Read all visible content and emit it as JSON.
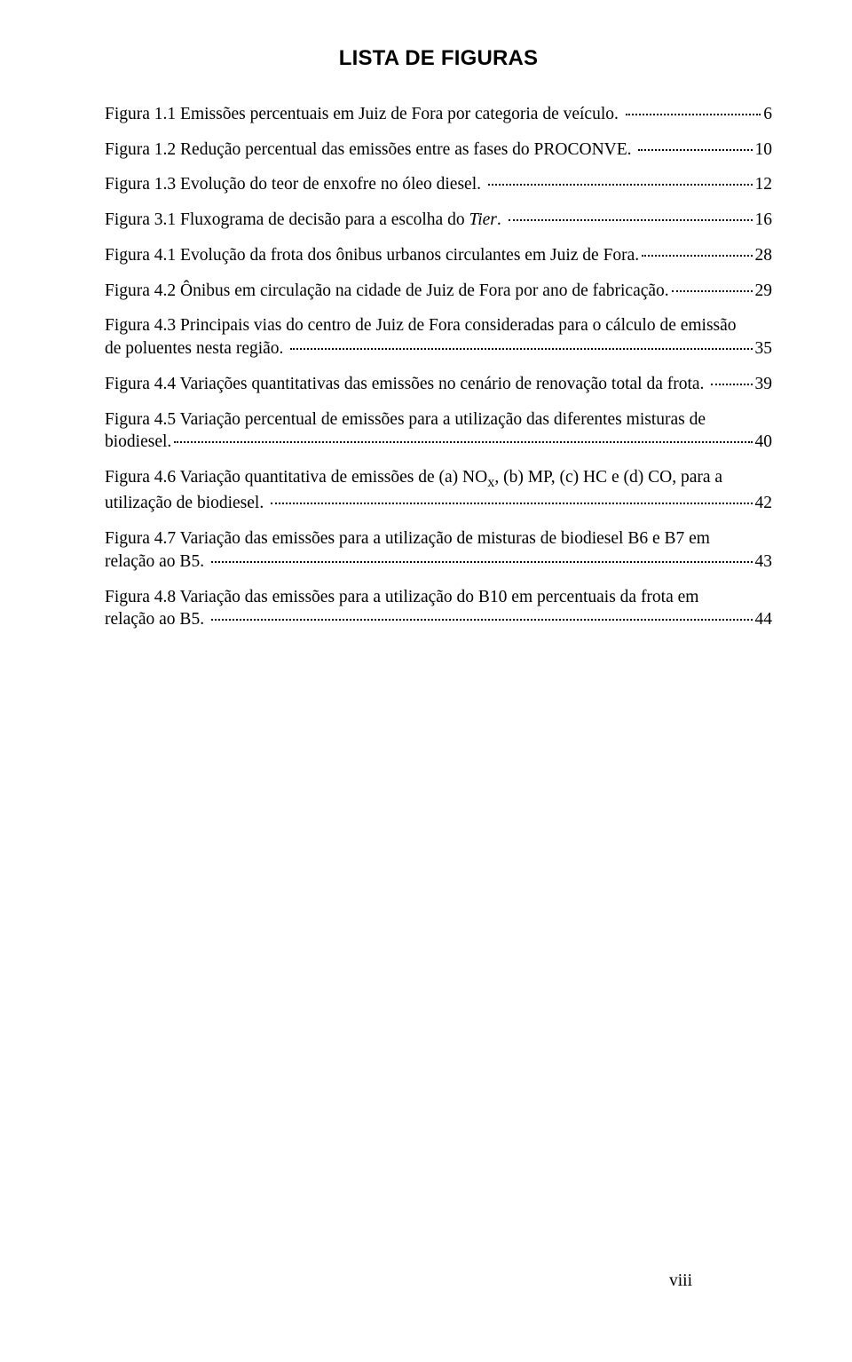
{
  "title": "LISTA DE FIGURAS",
  "page_number_label": "viii",
  "typography": {
    "title_font_family": "Arial",
    "title_font_size_pt": 18,
    "title_font_weight": "bold",
    "body_font_family": "Times New Roman",
    "body_font_size_pt": 14.5,
    "text_color": "#000000",
    "background_color": "#ffffff",
    "line_height": 1.32,
    "leader_style": "dotted"
  },
  "entries": [
    {
      "pre_lines": [],
      "last_line_lead": "Figura 1.1 Emissões percentuais em Juiz de Fora por categoria de veículo. ",
      "page": "6"
    },
    {
      "pre_lines": [],
      "last_line_lead": "Figura 1.2 Redução percentual das emissões entre as fases do PROCONVE. ",
      "page": "10"
    },
    {
      "pre_lines": [],
      "last_line_lead": "Figura 1.3 Evolução do teor de enxofre no óleo diesel. ",
      "page": "12"
    },
    {
      "pre_lines": [],
      "last_line_lead_html": "Figura 3.1 Fluxograma de decisão para a escolha do <span class=\"italic\">Tier</span>. ",
      "page": "16"
    },
    {
      "pre_lines": [],
      "last_line_lead": "Figura 4.1 Evolução da frota dos ônibus urbanos circulantes em Juiz de Fora.",
      "page": "28"
    },
    {
      "pre_lines": [],
      "last_line_lead": "Figura 4.2 Ônibus em circulação na cidade de Juiz de Fora por ano de fabricação.",
      "page": "29"
    },
    {
      "pre_lines": [
        "Figura 4.3 Principais vias do centro de Juiz de Fora consideradas para o cálculo de emissão"
      ],
      "last_line_lead": "de poluentes nesta região. ",
      "page": "35"
    },
    {
      "pre_lines": [],
      "last_line_lead": "Figura 4.4 Variações quantitativas das emissões no cenário de renovação total da frota. ",
      "page": "39"
    },
    {
      "pre_lines": [
        "Figura 4.5 Variação percentual de emissões para a utilização das diferentes misturas de"
      ],
      "last_line_lead": "biodiesel.",
      "page": "40"
    },
    {
      "pre_lines": [],
      "last_line_lead_html": "Figura 4.6 Variação quantitativa de emissões de (a) NO<sub>x</sub>, (b) MP, (c) HC e (d) CO, para a",
      "is_pre_html": true,
      "pre_lines_html": [
        "Figura 4.6 Variação quantitativa de emissões de (a) NO<sub>x</sub>, (b) MP, (c) HC e (d) CO, para a"
      ],
      "last_line_lead": "utilização de biodiesel. ",
      "page": "42"
    },
    {
      "pre_lines": [
        "Figura 4.7 Variação das emissões para a utilização de misturas de biodiesel B6 e B7 em"
      ],
      "last_line_lead": "relação ao B5. ",
      "page": "43"
    },
    {
      "pre_lines": [
        "Figura 4.8 Variação das emissões para a utilização do B10 em percentuais da frota em"
      ],
      "last_line_lead": "relação ao B5. ",
      "page": "44"
    }
  ]
}
